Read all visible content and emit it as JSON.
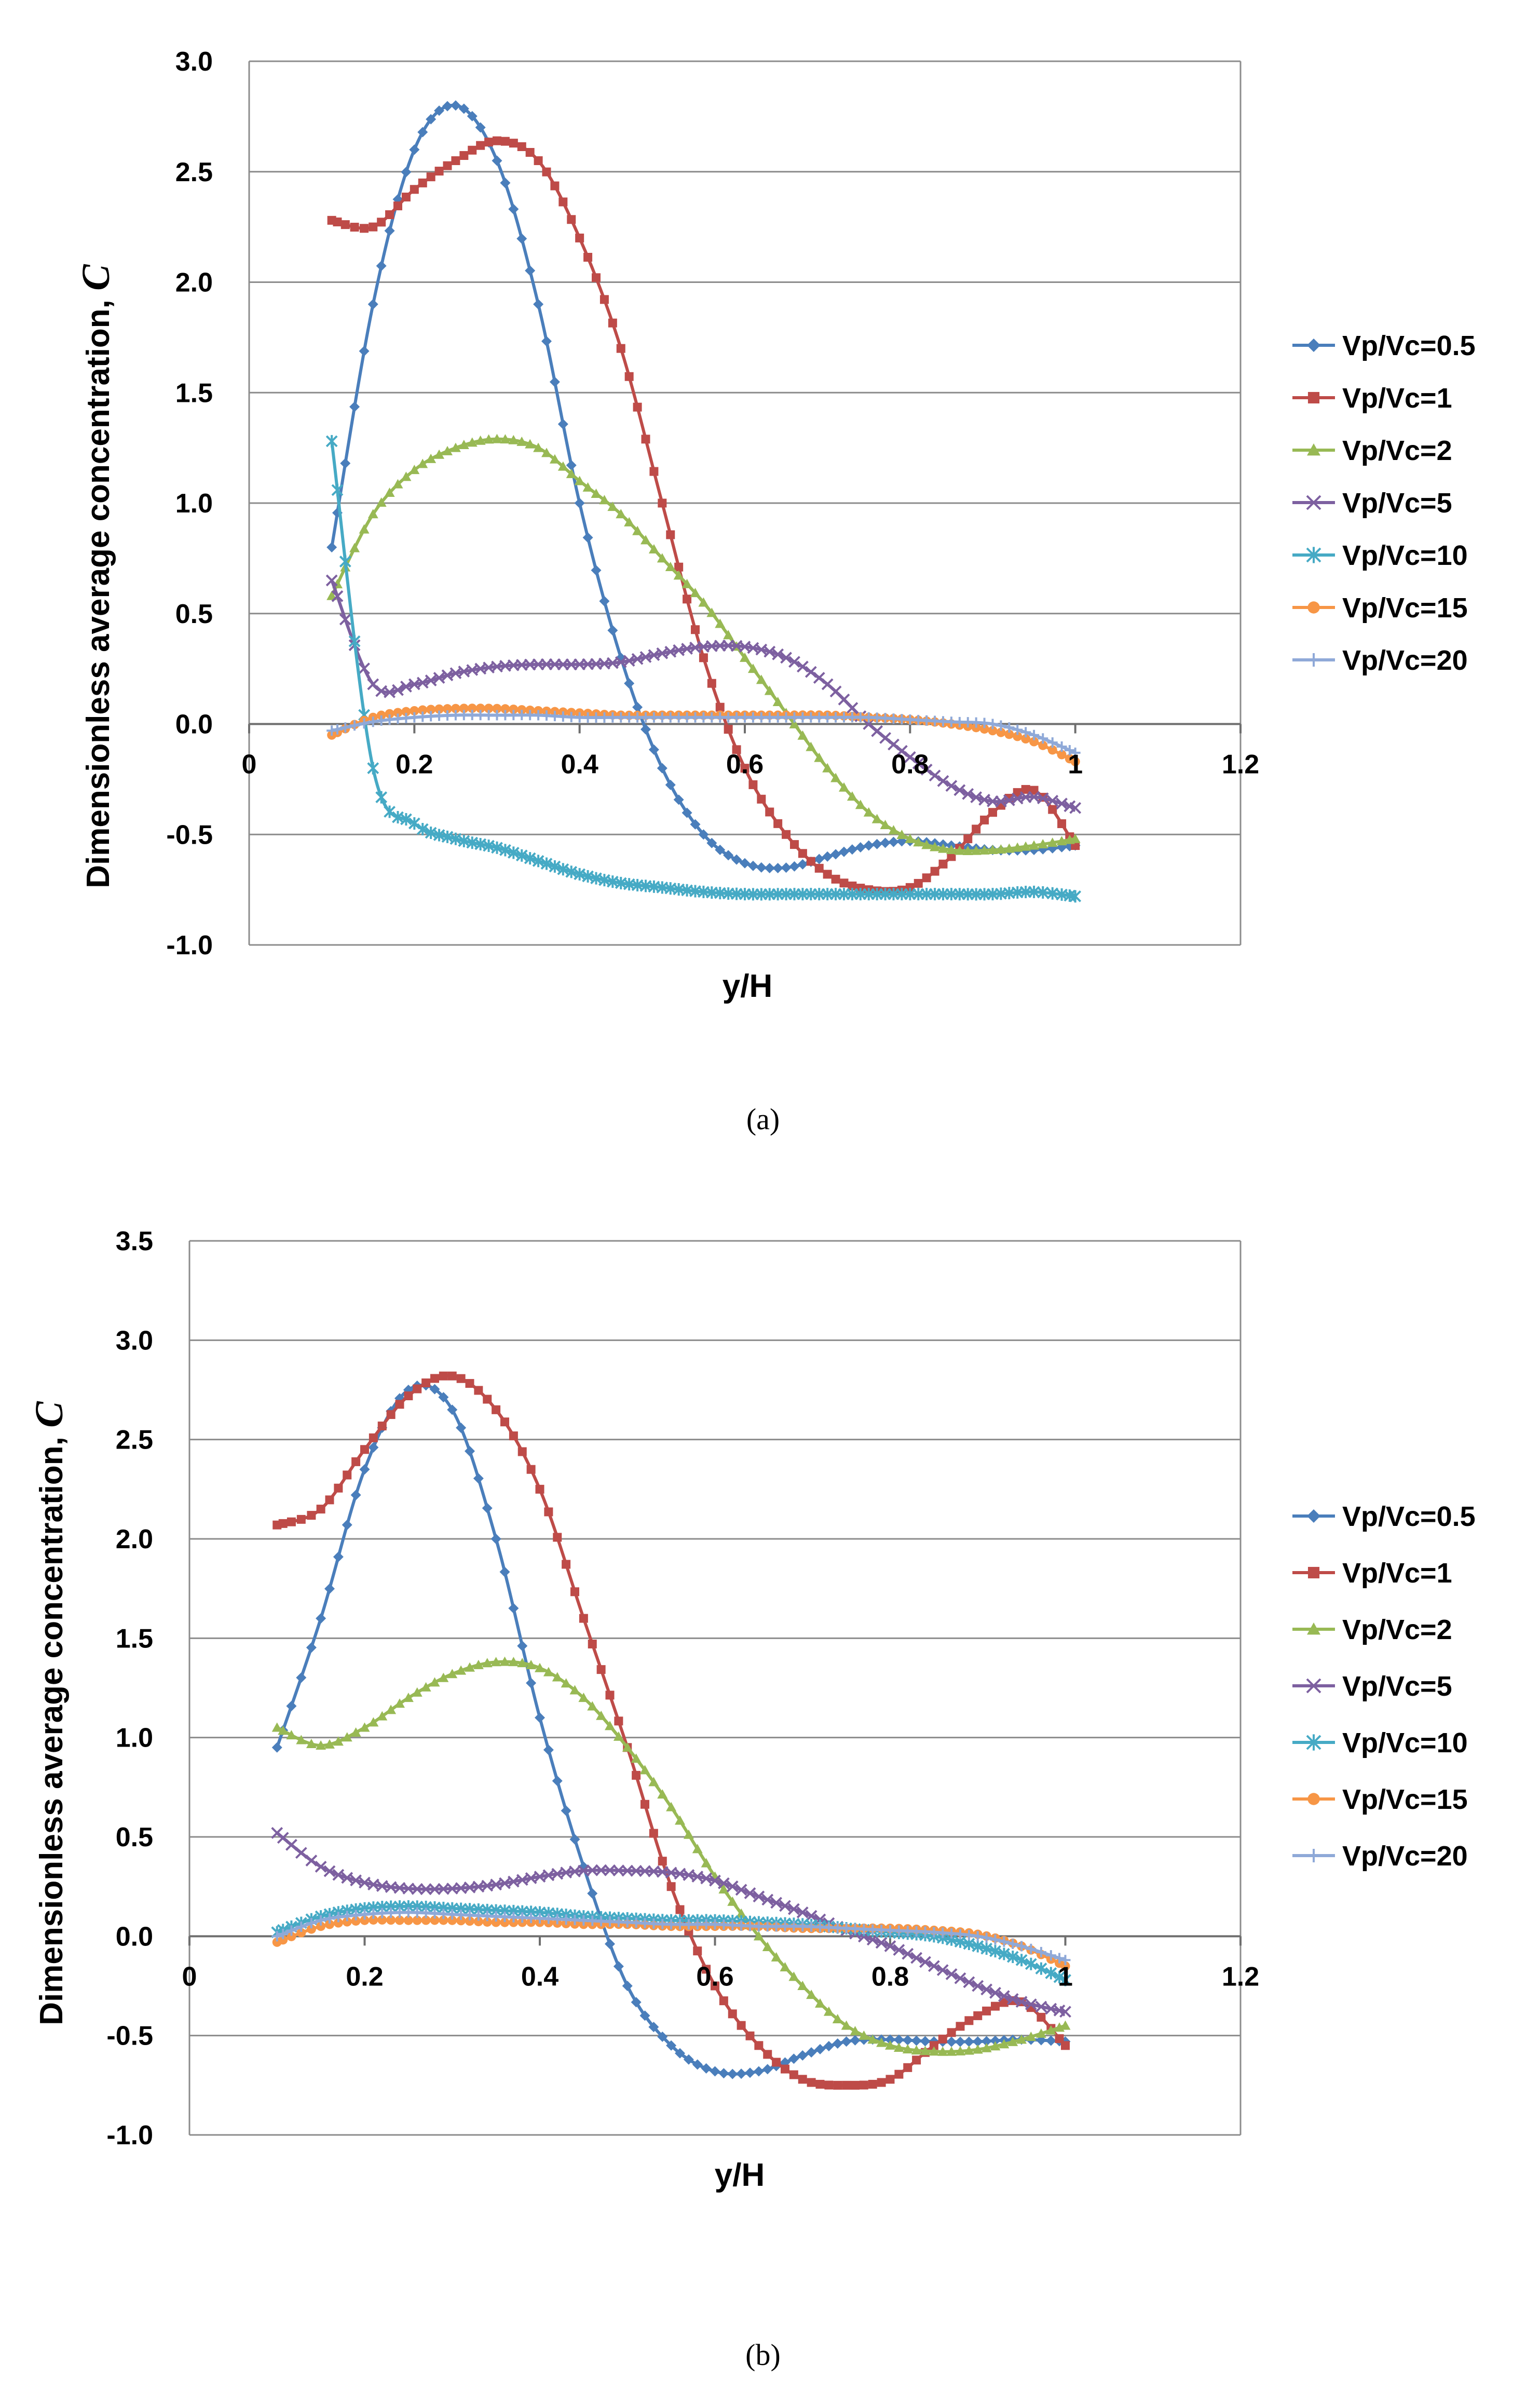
{
  "chart_data": [
    {
      "type": "line",
      "panel_label": "(a)",
      "xlabel": "y/H",
      "ylabel": "Dimensionless average concentration, ",
      "ylabel_symbol": "C",
      "xlim": [
        0,
        1.2
      ],
      "ylim": [
        -1.0,
        3.0
      ],
      "xticks": [
        "0",
        "0.2",
        "0.4",
        "0.6",
        "0.8",
        "1",
        "1.2"
      ],
      "yticks": [
        "-1.0",
        "-0.5",
        "0.0",
        "0.5",
        "1.0",
        "1.5",
        "2.0",
        "2.5",
        "3.0"
      ],
      "grid": "horizontal",
      "legend": "right",
      "series": [
        {
          "name": "Vp/Vc=0.5",
          "color": "#4a7ebb",
          "marker": "diamond",
          "x": [
            0.1,
            0.15,
            0.2,
            0.25,
            0.3,
            0.35,
            0.4,
            0.45,
            0.5,
            0.55,
            0.6,
            0.65,
            0.7,
            0.75,
            0.8,
            0.85,
            0.9,
            0.95,
            1.0
          ],
          "y": [
            0.8,
            1.9,
            2.6,
            2.8,
            2.55,
            1.9,
            1.0,
            0.3,
            -0.2,
            -0.5,
            -0.63,
            -0.65,
            -0.6,
            -0.55,
            -0.53,
            -0.55,
            -0.57,
            -0.57,
            -0.55
          ]
        },
        {
          "name": "Vp/Vc=1",
          "color": "#be4b48",
          "marker": "square",
          "x": [
            0.1,
            0.15,
            0.2,
            0.25,
            0.3,
            0.35,
            0.4,
            0.45,
            0.5,
            0.55,
            0.6,
            0.65,
            0.7,
            0.75,
            0.8,
            0.85,
            0.9,
            0.95,
            1.0
          ],
          "y": [
            2.28,
            2.25,
            2.42,
            2.55,
            2.64,
            2.55,
            2.2,
            1.7,
            1.0,
            0.3,
            -0.2,
            -0.5,
            -0.68,
            -0.75,
            -0.74,
            -0.6,
            -0.4,
            -0.3,
            -0.55
          ]
        },
        {
          "name": "Vp/Vc=2",
          "color": "#98b954",
          "marker": "triangle",
          "x": [
            0.1,
            0.15,
            0.2,
            0.25,
            0.3,
            0.35,
            0.4,
            0.45,
            0.5,
            0.55,
            0.6,
            0.65,
            0.7,
            0.75,
            0.8,
            0.85,
            0.9,
            0.95,
            1.0
          ],
          "y": [
            0.58,
            0.95,
            1.15,
            1.25,
            1.29,
            1.25,
            1.1,
            0.95,
            0.75,
            0.55,
            0.3,
            0.05,
            -0.2,
            -0.4,
            -0.52,
            -0.57,
            -0.57,
            -0.55,
            -0.52
          ]
        },
        {
          "name": "Vp/Vc=5",
          "color": "#7d60a0",
          "marker": "x",
          "x": [
            0.1,
            0.15,
            0.2,
            0.25,
            0.3,
            0.35,
            0.4,
            0.45,
            0.5,
            0.55,
            0.6,
            0.65,
            0.7,
            0.75,
            0.8,
            0.85,
            0.9,
            0.95,
            1.0
          ],
          "y": [
            0.65,
            0.18,
            0.18,
            0.23,
            0.26,
            0.27,
            0.27,
            0.28,
            0.32,
            0.35,
            0.35,
            0.3,
            0.18,
            0.0,
            -0.15,
            -0.28,
            -0.35,
            -0.33,
            -0.38
          ]
        },
        {
          "name": "Vp/Vc=10",
          "color": "#46aac5",
          "marker": "star",
          "x": [
            0.1,
            0.15,
            0.2,
            0.25,
            0.3,
            0.35,
            0.4,
            0.45,
            0.5,
            0.55,
            0.6,
            0.65,
            0.7,
            0.75,
            0.8,
            0.85,
            0.9,
            0.95,
            1.0
          ],
          "y": [
            1.28,
            -0.2,
            -0.45,
            -0.52,
            -0.56,
            -0.62,
            -0.68,
            -0.72,
            -0.74,
            -0.76,
            -0.77,
            -0.77,
            -0.77,
            -0.77,
            -0.77,
            -0.77,
            -0.77,
            -0.76,
            -0.78
          ]
        },
        {
          "name": "Vp/Vc=15",
          "color": "#f79646",
          "marker": "circle",
          "x": [
            0.1,
            0.15,
            0.2,
            0.25,
            0.3,
            0.35,
            0.4,
            0.45,
            0.5,
            0.55,
            0.6,
            0.65,
            0.7,
            0.75,
            0.8,
            0.85,
            0.9,
            0.95,
            1.0
          ],
          "y": [
            -0.05,
            0.03,
            0.06,
            0.07,
            0.07,
            0.06,
            0.05,
            0.04,
            0.04,
            0.04,
            0.04,
            0.04,
            0.04,
            0.03,
            0.02,
            0.0,
            -0.03,
            -0.08,
            -0.17
          ]
        },
        {
          "name": "Vp/Vc=20",
          "color": "#8fa9d8",
          "marker": "plus",
          "x": [
            0.1,
            0.15,
            0.2,
            0.25,
            0.3,
            0.35,
            0.4,
            0.45,
            0.5,
            0.55,
            0.6,
            0.65,
            0.7,
            0.75,
            0.8,
            0.85,
            0.9,
            0.95,
            1.0
          ],
          "y": [
            -0.03,
            0.01,
            0.03,
            0.04,
            0.04,
            0.04,
            0.03,
            0.03,
            0.03,
            0.03,
            0.03,
            0.03,
            0.03,
            0.03,
            0.02,
            0.01,
            0.0,
            -0.05,
            -0.13
          ]
        }
      ]
    },
    {
      "type": "line",
      "panel_label": "(b)",
      "xlabel": "y/H",
      "ylabel": "Dimensionless average concentration, ",
      "ylabel_symbol": "C",
      "xlim": [
        0,
        1.2
      ],
      "ylim": [
        -1.0,
        3.5
      ],
      "xticks": [
        "0",
        "0.2",
        "0.4",
        "0.6",
        "0.8",
        "1",
        "1.2"
      ],
      "yticks": [
        "-1.0",
        "-0.5",
        "0.0",
        "0.5",
        "1.0",
        "1.5",
        "2.0",
        "2.5",
        "3.0",
        "3.5"
      ],
      "grid": "horizontal",
      "legend": "right",
      "series": [
        {
          "name": "Vp/Vc=0.5",
          "color": "#4a7ebb",
          "marker": "diamond",
          "x": [
            0.1,
            0.15,
            0.2,
            0.25,
            0.3,
            0.35,
            0.4,
            0.45,
            0.5,
            0.55,
            0.6,
            0.65,
            0.7,
            0.75,
            0.8,
            0.85,
            0.9,
            0.95,
            1.0
          ],
          "y": [
            0.95,
            1.6,
            2.35,
            2.75,
            2.65,
            2.0,
            1.1,
            0.35,
            -0.25,
            -0.55,
            -0.68,
            -0.68,
            -0.6,
            -0.53,
            -0.52,
            -0.53,
            -0.53,
            -0.52,
            -0.53
          ]
        },
        {
          "name": "Vp/Vc=1",
          "color": "#be4b48",
          "marker": "square",
          "x": [
            0.1,
            0.15,
            0.2,
            0.25,
            0.3,
            0.35,
            0.4,
            0.45,
            0.5,
            0.55,
            0.6,
            0.65,
            0.7,
            0.75,
            0.8,
            0.85,
            0.9,
            0.95,
            1.0
          ],
          "y": [
            2.07,
            2.15,
            2.45,
            2.72,
            2.82,
            2.65,
            2.25,
            1.6,
            0.95,
            0.25,
            -0.25,
            -0.55,
            -0.72,
            -0.75,
            -0.72,
            -0.55,
            -0.4,
            -0.33,
            -0.55
          ]
        },
        {
          "name": "Vp/Vc=2",
          "color": "#98b954",
          "marker": "triangle",
          "x": [
            0.1,
            0.15,
            0.2,
            0.25,
            0.3,
            0.35,
            0.4,
            0.45,
            0.5,
            0.55,
            0.6,
            0.65,
            0.7,
            0.75,
            0.8,
            0.85,
            0.9,
            0.95,
            1.0
          ],
          "y": [
            1.05,
            0.96,
            1.05,
            1.2,
            1.32,
            1.38,
            1.35,
            1.2,
            0.95,
            0.65,
            0.3,
            0.0,
            -0.25,
            -0.45,
            -0.55,
            -0.58,
            -0.57,
            -0.52,
            -0.45
          ]
        },
        {
          "name": "Vp/Vc=5",
          "color": "#7d60a0",
          "marker": "x",
          "x": [
            0.1,
            0.15,
            0.2,
            0.25,
            0.3,
            0.35,
            0.4,
            0.45,
            0.5,
            0.55,
            0.6,
            0.65,
            0.7,
            0.75,
            0.8,
            0.85,
            0.9,
            0.95,
            1.0
          ],
          "y": [
            0.52,
            0.35,
            0.27,
            0.24,
            0.24,
            0.26,
            0.3,
            0.33,
            0.33,
            0.32,
            0.28,
            0.2,
            0.12,
            0.03,
            -0.05,
            -0.15,
            -0.25,
            -0.33,
            -0.38
          ]
        },
        {
          "name": "Vp/Vc=10",
          "color": "#46aac5",
          "marker": "star",
          "x": [
            0.1,
            0.15,
            0.2,
            0.25,
            0.3,
            0.35,
            0.4,
            0.45,
            0.5,
            0.55,
            0.6,
            0.65,
            0.7,
            0.75,
            0.8,
            0.85,
            0.9,
            0.95,
            1.0
          ],
          "y": [
            0.02,
            0.1,
            0.14,
            0.15,
            0.14,
            0.13,
            0.12,
            0.1,
            0.09,
            0.08,
            0.08,
            0.07,
            0.06,
            0.04,
            0.02,
            0.0,
            -0.05,
            -0.12,
            -0.22
          ]
        },
        {
          "name": "Vp/Vc=15",
          "color": "#f79646",
          "marker": "circle",
          "x": [
            0.1,
            0.15,
            0.2,
            0.25,
            0.3,
            0.35,
            0.4,
            0.45,
            0.5,
            0.55,
            0.6,
            0.65,
            0.7,
            0.75,
            0.8,
            0.85,
            0.9,
            0.95,
            1.0
          ],
          "y": [
            -0.03,
            0.05,
            0.08,
            0.08,
            0.08,
            0.07,
            0.07,
            0.06,
            0.06,
            0.05,
            0.05,
            0.05,
            0.04,
            0.04,
            0.04,
            0.03,
            0.01,
            -0.05,
            -0.15
          ]
        },
        {
          "name": "Vp/Vc=20",
          "color": "#8fa9d8",
          "marker": "plus",
          "x": [
            0.1,
            0.15,
            0.2,
            0.25,
            0.3,
            0.35,
            0.4,
            0.45,
            0.5,
            0.55,
            0.6,
            0.65,
            0.7,
            0.75,
            0.8,
            0.85,
            0.9,
            0.95,
            1.0
          ],
          "y": [
            0.0,
            0.08,
            0.11,
            0.12,
            0.11,
            0.1,
            0.09,
            0.08,
            0.07,
            0.06,
            0.06,
            0.05,
            0.05,
            0.04,
            0.03,
            0.02,
            0.0,
            -0.05,
            -0.12
          ]
        }
      ]
    }
  ]
}
